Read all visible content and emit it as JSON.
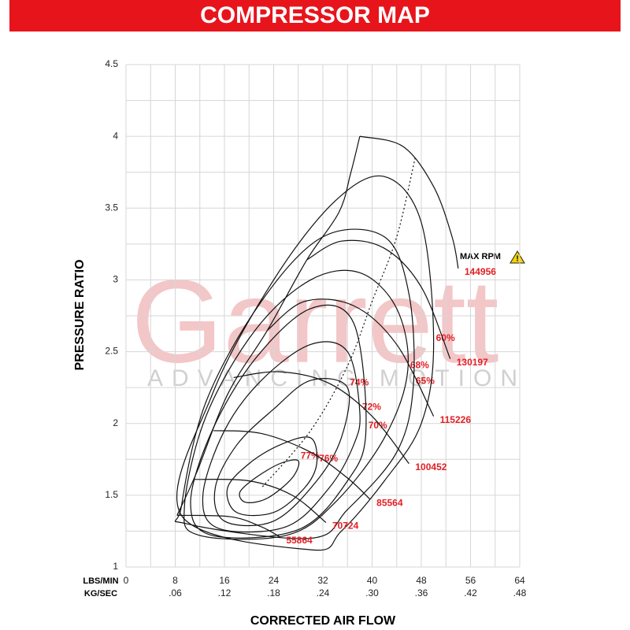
{
  "chart_data": {
    "type": "compressor-map",
    "title": "COMPRESSOR MAP",
    "x_label": "CORRECTED AIR FLOW",
    "y_label": "PRESSURE RATIO",
    "x_unit": "LBS/MIN",
    "x2_unit": "KG/SEC",
    "watermark": [
      "Garrett",
      "ADVANCING MOTION"
    ],
    "max_rpm_label": "MAX RPM",
    "title_color": "#e8141c",
    "label_color": "#e31e24",
    "line_color": "#111111",
    "watermark_color": "#f3c6c8",
    "xlim": [
      0,
      64
    ],
    "ylim": [
      1,
      4.5
    ],
    "x2lim": [
      0,
      0.48
    ],
    "xticks": [
      0,
      8,
      16,
      24,
      32,
      40,
      48,
      56,
      64
    ],
    "x2ticks": [
      {
        "value": 0.06,
        "label": ".06"
      },
      {
        "value": 0.12,
        "label": ".12"
      },
      {
        "value": 0.18,
        "label": ".18"
      },
      {
        "value": 0.24,
        "label": ".24"
      },
      {
        "value": 0.3,
        "label": ".30"
      },
      {
        "value": 0.36,
        "label": ".36"
      },
      {
        "value": 0.42,
        "label": ".42"
      },
      {
        "value": 0.48,
        "label": ".48"
      }
    ],
    "yticks": [
      1,
      1.5,
      2,
      2.5,
      3,
      3.5,
      4,
      4.5
    ],
    "xgrid": [
      0,
      4,
      8,
      12,
      16,
      20,
      24,
      28,
      32,
      36,
      40,
      44,
      48,
      52,
      56,
      60,
      64
    ],
    "ygrid": [
      1,
      1.25,
      1.5,
      1.75,
      2,
      2.25,
      2.5,
      2.75,
      3,
      3.25,
      3.5,
      3.75,
      4,
      4.25,
      4.5
    ],
    "grid": true,
    "surge_line": {
      "x": [
        8.3,
        11.5,
        16.6,
        23,
        29.4,
        34.6,
        36.5,
        38
      ],
      "y": [
        1.36,
        1.66,
        2.21,
        2.65,
        3.14,
        3.47,
        3.74,
        4.0
      ]
    },
    "dotted_line": {
      "x": [
        47,
        44,
        40,
        36,
        30,
        22
      ],
      "y": [
        3.85,
        3.3,
        2.85,
        2.4,
        1.95,
        1.55
      ]
    },
    "series": [
      {
        "name": "55864",
        "x": [
          8.3,
          17,
          22,
          25
        ],
        "y": [
          1.36,
          1.35,
          1.28,
          1.21
        ]
      },
      {
        "name": "70724",
        "x": [
          11,
          20,
          27,
          32.5
        ],
        "y": [
          1.61,
          1.6,
          1.5,
          1.31
        ]
      },
      {
        "name": "85564",
        "x": [
          14.2,
          22,
          30,
          36,
          39.7
        ],
        "y": [
          1.95,
          1.93,
          1.8,
          1.62,
          1.47
        ]
      },
      {
        "name": "100452",
        "x": [
          17.5,
          25,
          33,
          40,
          46
        ],
        "y": [
          2.32,
          2.36,
          2.28,
          2.05,
          1.72
        ]
      },
      {
        "name": "115226",
        "x": [
          23,
          29,
          37,
          44,
          50
        ],
        "y": [
          2.65,
          2.85,
          2.82,
          2.55,
          2.05
        ]
      },
      {
        "name": "130197",
        "x": [
          29.4,
          35,
          42,
          48,
          52.7
        ],
        "y": [
          3.14,
          3.27,
          3.22,
          2.95,
          2.45
        ]
      },
      {
        "name": "144956",
        "x": [
          38,
          45,
          50,
          53,
          54
        ],
        "y": [
          4.0,
          3.93,
          3.65,
          3.3,
          3.08
        ]
      }
    ],
    "islands": [
      {
        "name": "77%",
        "x": [
          28,
          27,
          23,
          19.5,
          18.5,
          21,
          25
        ],
        "y": [
          1.74,
          1.62,
          1.48,
          1.45,
          1.52,
          1.62,
          1.72
        ]
      },
      {
        "name": "76%",
        "x": [
          31,
          29,
          24,
          18,
          16.5,
          20,
          25,
          30
        ],
        "y": [
          1.72,
          1.55,
          1.38,
          1.38,
          1.55,
          1.72,
          1.85,
          1.9
        ]
      },
      {
        "name": "74%",
        "x": [
          36,
          35,
          31,
          24,
          16,
          14.5,
          18,
          24,
          30
        ],
        "y": [
          2.25,
          1.9,
          1.6,
          1.32,
          1.32,
          1.55,
          1.85,
          2.1,
          2.3
        ]
      },
      {
        "name": "72%",
        "x": [
          38,
          37,
          33,
          26,
          15,
          12.5,
          16,
          22,
          30,
          36
        ],
        "y": [
          2.08,
          1.85,
          1.55,
          1.28,
          1.27,
          1.5,
          1.95,
          2.3,
          2.55,
          2.5
        ]
      },
      {
        "name": "70%",
        "x": [
          39,
          36,
          28,
          14,
          10.5,
          14,
          21,
          30,
          37
        ],
        "y": [
          1.95,
          1.6,
          1.26,
          1.22,
          1.45,
          1.95,
          2.45,
          2.8,
          2.7
        ]
      },
      {
        "name": "68%",
        "x": [
          45.8,
          42,
          34,
          26,
          12,
          9.5,
          13,
          21,
          30,
          38,
          44
        ],
        "y": [
          2.37,
          1.9,
          1.45,
          1.22,
          1.22,
          1.42,
          2.05,
          2.65,
          3.0,
          3.05,
          2.8
        ]
      },
      {
        "name": "65%",
        "x": [
          46.7,
          44,
          36,
          30,
          10,
          9,
          13,
          22,
          32,
          42,
          46
        ],
        "y": [
          2.26,
          1.8,
          1.4,
          1.2,
          1.3,
          1.42,
          2.15,
          2.85,
          3.3,
          3.3,
          2.9
        ]
      },
      {
        "name": "60%",
        "x": [
          50,
          48,
          42,
          35,
          30,
          9,
          14,
          24,
          34,
          42,
          48
        ],
        "y": [
          2.56,
          2.0,
          1.6,
          1.25,
          1.12,
          1.36,
          2.2,
          3.0,
          3.55,
          3.72,
          3.4
        ]
      }
    ]
  }
}
